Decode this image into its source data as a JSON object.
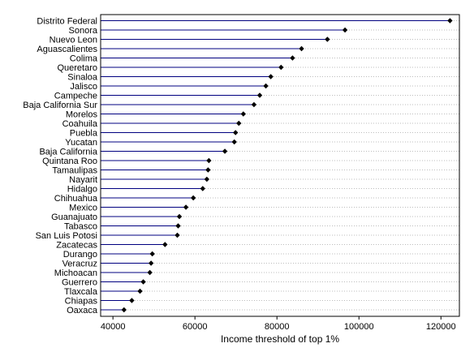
{
  "chart_data": {
    "type": "dot",
    "title": "",
    "xlabel": "Income threshold of top 1%",
    "ylabel": "",
    "xlim": [
      37000,
      124500
    ],
    "xticks": [
      40000,
      60000,
      80000,
      100000,
      120000
    ],
    "xtick_labels": [
      "40000",
      "60000",
      "80000",
      "100000",
      "120000"
    ],
    "grid": "dotted horizontal",
    "colors": {
      "stem": "#000080",
      "point": "#000000",
      "grid": "#bdbdbd"
    },
    "categories": [
      "Distrito Federal",
      "Sonora",
      "Nuevo Leon",
      "Aguascalientes",
      "Colima",
      "Queretaro",
      "Sinaloa",
      "Jalisco",
      "Campeche",
      "Baja California Sur",
      "Morelos",
      "Coahuila",
      "Puebla",
      "Yucatan",
      "Baja California",
      "Quintana Roo",
      "Tamaulipas",
      "Nayarit",
      "Hidalgo",
      "Chihuahua",
      "Mexico",
      "Guanajuato",
      "Tabasco",
      "San Luis Potosi",
      "Zacatecas",
      "Durango",
      "Veracruz",
      "Michoacan",
      "Guerrero",
      "Tlaxcala",
      "Chiapas",
      "Oaxaca"
    ],
    "values": [
      122200,
      96600,
      92300,
      86000,
      83800,
      81000,
      78500,
      77300,
      75800,
      74400,
      71800,
      70700,
      69900,
      69600,
      67300,
      63400,
      63200,
      62900,
      61900,
      59600,
      57800,
      56200,
      55900,
      55700,
      52700,
      49600,
      49300,
      49000,
      47400,
      46600,
      44600,
      42700
    ]
  }
}
